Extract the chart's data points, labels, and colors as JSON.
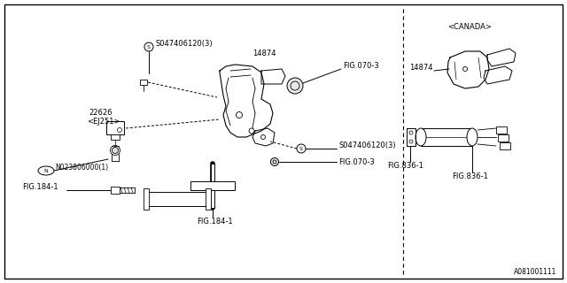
{
  "bg_color": "#ffffff",
  "line_color": "#000000",
  "gray_color": "#888888",
  "labels": {
    "screw_top": "S047406120(3)",
    "part_14874_main": "14874",
    "fig_070_3_top": "FIG.070-3",
    "part_22626_line1": "22626",
    "part_22626_line2": "<EJ251>",
    "nut": "N023806000(1)",
    "fig_184_left": "FIG.184-1",
    "fig_184_center": "FIG.184-1",
    "screw_mid": "S047406120(3)",
    "fig_070_3_bot": "FIG.070-3",
    "canada": "<CANADA>",
    "part_14874_canada": "14874",
    "fig_836_left": "FIG.836-1",
    "fig_836_right": "FIG.836-1",
    "fig_ref": "A081001111"
  },
  "font_size": 6.0,
  "font_size_tiny": 5.5
}
